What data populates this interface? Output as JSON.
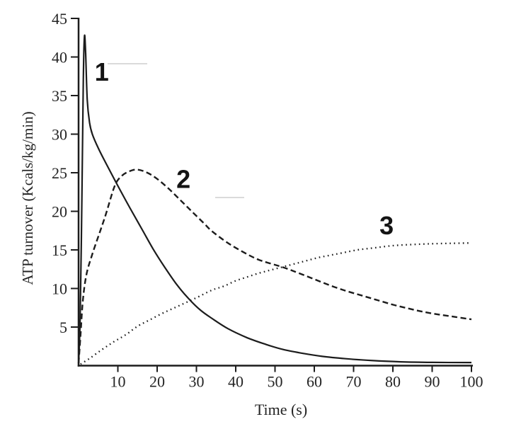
{
  "chart_data": {
    "type": "line",
    "title": "",
    "xlabel": "Time (s)",
    "ylabel": "ATP turnover (Kcals/kg/min)",
    "xlim": [
      0,
      100
    ],
    "ylim": [
      0,
      45
    ],
    "x_ticks": [
      10,
      20,
      30,
      40,
      50,
      60,
      70,
      80,
      90,
      100
    ],
    "y_ticks": [
      5,
      10,
      15,
      20,
      25,
      30,
      35,
      40,
      45
    ],
    "grid": false,
    "legend_position": "none",
    "series": [
      {
        "name": "1",
        "style": "solid",
        "points": [
          [
            0,
            0.2
          ],
          [
            0.4,
            6
          ],
          [
            0.7,
            16
          ],
          [
            1.0,
            28
          ],
          [
            1.2,
            37
          ],
          [
            1.5,
            42.7
          ],
          [
            1.8,
            40.5
          ],
          [
            2.2,
            34.5
          ],
          [
            2.8,
            31.5
          ],
          [
            3.5,
            30
          ],
          [
            5,
            28.2
          ],
          [
            7,
            26.2
          ],
          [
            10,
            23.3
          ],
          [
            13,
            20.5
          ],
          [
            16,
            17.8
          ],
          [
            19,
            15.1
          ],
          [
            22,
            12.7
          ],
          [
            25,
            10.5
          ],
          [
            28,
            8.7
          ],
          [
            31,
            7.2
          ],
          [
            34,
            6.1
          ],
          [
            38,
            4.8
          ],
          [
            43,
            3.6
          ],
          [
            48,
            2.7
          ],
          [
            52,
            2.1
          ],
          [
            57,
            1.6
          ],
          [
            62,
            1.2
          ],
          [
            68,
            0.9
          ],
          [
            75,
            0.65
          ],
          [
            82,
            0.5
          ],
          [
            90,
            0.42
          ],
          [
            100,
            0.4
          ]
        ]
      },
      {
        "name": "2",
        "style": "dashed",
        "points": [
          [
            0,
            0.3
          ],
          [
            0.5,
            4
          ],
          [
            1.1,
            8.5
          ],
          [
            2,
            11.8
          ],
          [
            3.4,
            14.3
          ],
          [
            5.2,
            17
          ],
          [
            7,
            19.7
          ],
          [
            9.2,
            23.3
          ],
          [
            11,
            24.6
          ],
          [
            13,
            25.2
          ],
          [
            15,
            25.4
          ],
          [
            17.5,
            25.0
          ],
          [
            20,
            24.2
          ],
          [
            23,
            22.9
          ],
          [
            26,
            21.4
          ],
          [
            29,
            19.9
          ],
          [
            32,
            18.4
          ],
          [
            34,
            17.4
          ],
          [
            38,
            15.9
          ],
          [
            42,
            14.7
          ],
          [
            46,
            13.7
          ],
          [
            52,
            12.75
          ],
          [
            56,
            12.0
          ],
          [
            60,
            11.2
          ],
          [
            64,
            10.4
          ],
          [
            68,
            9.7
          ],
          [
            72,
            9.1
          ],
          [
            76,
            8.5
          ],
          [
            80,
            7.9
          ],
          [
            84,
            7.4
          ],
          [
            88,
            6.95
          ],
          [
            92,
            6.6
          ],
          [
            96,
            6.3
          ],
          [
            100,
            6.0
          ]
        ]
      },
      {
        "name": "3",
        "style": "dotted",
        "points": [
          [
            0.5,
            0.2
          ],
          [
            3,
            1.0
          ],
          [
            6,
            2.1
          ],
          [
            9,
            3.1
          ],
          [
            12,
            4.0
          ],
          [
            15,
            5.1
          ],
          [
            18,
            5.9
          ],
          [
            21,
            6.7
          ],
          [
            24,
            7.4
          ],
          [
            27,
            8.1
          ],
          [
            30,
            8.8
          ],
          [
            34,
            9.8
          ],
          [
            37,
            10.3
          ],
          [
            40,
            11.0
          ],
          [
            43,
            11.5
          ],
          [
            46,
            12.0
          ],
          [
            49,
            12.4
          ],
          [
            52,
            12.8
          ],
          [
            55,
            13.2
          ],
          [
            58,
            13.6
          ],
          [
            61,
            14.0
          ],
          [
            64,
            14.3
          ],
          [
            67,
            14.6
          ],
          [
            71,
            15.0
          ],
          [
            75,
            15.25
          ],
          [
            80,
            15.55
          ],
          [
            85,
            15.7
          ],
          [
            90,
            15.8
          ],
          [
            95,
            15.85
          ],
          [
            100,
            15.9
          ]
        ]
      }
    ],
    "annotations": [
      {
        "text": "1",
        "t": 5.9,
        "v": 38.1
      },
      {
        "text": "2",
        "t": 26.7,
        "v": 24.2
      },
      {
        "text": "3",
        "t": 78.4,
        "v": 18.2
      }
    ]
  },
  "colors": {
    "curve": "#1c1c1c",
    "text": "#242424",
    "background": "#ffffff"
  }
}
